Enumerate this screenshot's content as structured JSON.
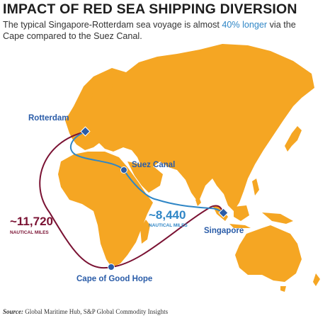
{
  "title": "IMPACT OF RED SEA SHIPPING DIVERSION",
  "subtitle": {
    "before": "The typical Singapore-Rotterdam sea voyage is almost ",
    "highlight": "40% longer",
    "after": " via the Cape compared to the Suez Canal."
  },
  "locations": {
    "rotterdam": "Rotterdam",
    "suez": "Suez Canal",
    "singapore": "Singapore",
    "cape": "Cape of Good Hope"
  },
  "routes": {
    "cape": {
      "distance": "~11,720",
      "unit": "NAUTICAL MILES",
      "color": "#7a1233"
    },
    "suez": {
      "distance": "~8,440",
      "unit": "NAUTICAL MILES",
      "color": "#2f86c6"
    }
  },
  "source": {
    "label": "Source:",
    "text": "Global Maritime Hub, S&P Global Commodity Insights"
  },
  "colors": {
    "land": "#f5a623",
    "title": "#1e1e1e",
    "marker": "#2a5ca8"
  }
}
